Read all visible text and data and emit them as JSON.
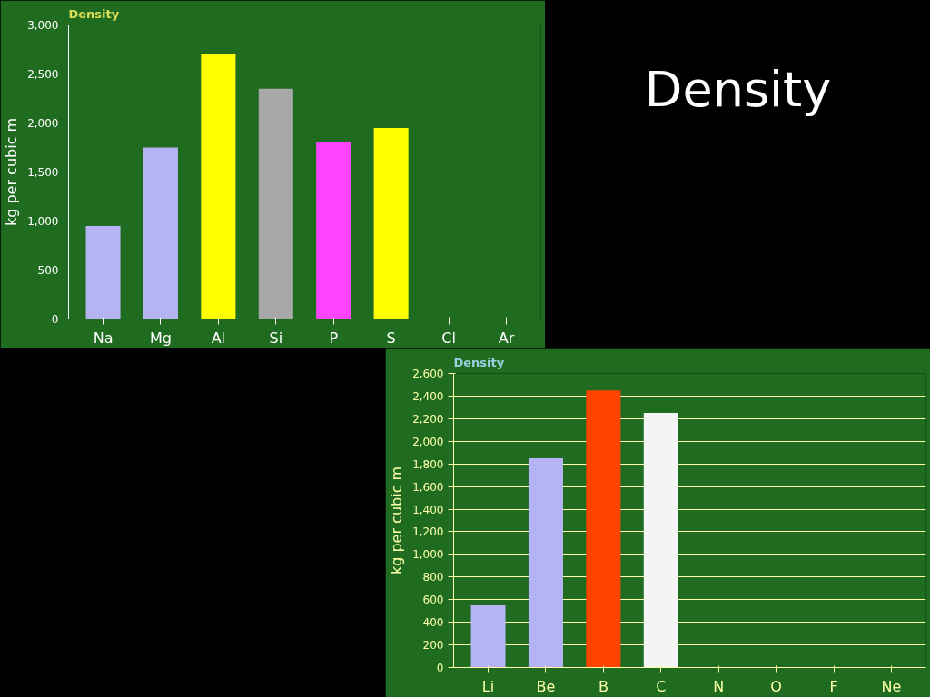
{
  "chart_data": [
    {
      "type": "bar",
      "title": "Density",
      "ylabel": "kg per cubic m",
      "categories": [
        "Na",
        "Mg",
        "Al",
        "Si",
        "P",
        "S",
        "Cl",
        "Ar"
      ],
      "values": [
        950,
        1750,
        2700,
        2350,
        1800,
        1950,
        0,
        0
      ],
      "colors": [
        "#b4b4f4",
        "#b4b4f4",
        "#ffff00",
        "#a8a8a8",
        "#ff44ff",
        "#ffff00",
        "#22cc22",
        "#f0a000"
      ],
      "ylim": [
        0,
        3000
      ],
      "yticks": [
        0,
        {
          "value": 500,
          "label": "500"
        },
        {
          "value": 1000,
          "label": "1,000"
        },
        {
          "value": 1500,
          "label": "1,500"
        },
        {
          "value": 2000,
          "label": "2,000"
        },
        {
          "value": 2500,
          "label": "2,500"
        },
        {
          "value": 3000,
          "label": "3,000"
        }
      ],
      "grid": "y"
    },
    {
      "type": "other",
      "title": "Density"
    },
    {
      "type": "bar",
      "title": "Density",
      "ylabel": "kg per cubic m",
      "categories": [
        "Li",
        "Be",
        "B",
        "C",
        "N",
        "O",
        "F",
        "Ne"
      ],
      "values": [
        550,
        1850,
        2450,
        2250,
        0,
        0,
        0,
        0
      ],
      "colors": [
        "#b4b4f4",
        "#b4b4f4",
        "#ff4400",
        "#f4f4f4",
        "#0000dd",
        "#dd0000",
        "#ffffaa",
        "#f0b000"
      ],
      "ylim": [
        0,
        2600
      ],
      "yticks": [
        0,
        200,
        400,
        600,
        800,
        {
          "value": 1000,
          "label": "1,000"
        },
        {
          "value": 1200,
          "label": "1,200"
        },
        {
          "value": 1400,
          "label": "1,400"
        },
        {
          "value": 1600,
          "label": "1,600"
        },
        {
          "value": 1800,
          "label": "1,800"
        },
        {
          "value": 2000,
          "label": "2,000"
        },
        {
          "value": 2200,
          "label": "2,200"
        },
        {
          "value": 2400,
          "label": "2,400"
        },
        {
          "value": 2600,
          "label": "2,600"
        }
      ],
      "grid": "y"
    }
  ]
}
